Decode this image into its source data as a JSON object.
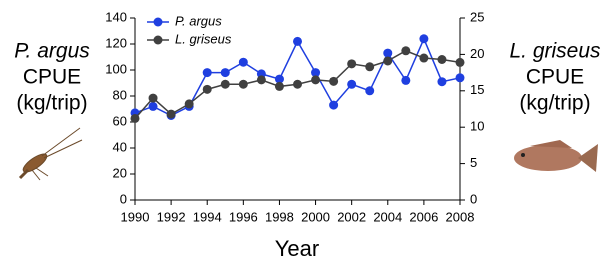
{
  "chart_data": {
    "type": "line",
    "x": [
      1990,
      1991,
      1992,
      1993,
      1994,
      1995,
      1996,
      1997,
      1998,
      1999,
      2000,
      2001,
      2002,
      2003,
      2004,
      2005,
      2006,
      2007,
      2008
    ],
    "series": [
      {
        "name": "P. argus",
        "color": "#1f3fe0",
        "axis": "y",
        "values": [
          67,
          72,
          65,
          72,
          98,
          98,
          106,
          97,
          93,
          122,
          98,
          73,
          89,
          84,
          113,
          92,
          124,
          91,
          94
        ]
      },
      {
        "name": "L. griseus",
        "color": "#404040",
        "axis": "y2",
        "values": [
          11.2,
          14,
          11.8,
          13.2,
          15.2,
          15.9,
          15.9,
          16.5,
          15.6,
          15.9,
          16.5,
          16.3,
          18.7,
          18.3,
          19.1,
          20.5,
          19.5,
          19.3,
          18.9
        ]
      }
    ],
    "xlim": [
      1990,
      2008
    ],
    "xticks": [
      1990,
      1992,
      1994,
      1996,
      1998,
      2000,
      2002,
      2004,
      2006,
      2008
    ],
    "ylim": [
      0,
      140
    ],
    "yticks": [
      0,
      20,
      40,
      60,
      80,
      100,
      120,
      140
    ],
    "y2lim": [
      0,
      25
    ],
    "y2ticks": [
      0,
      5,
      10,
      15,
      20,
      25
    ],
    "xlabel": "Year",
    "ylabel": {
      "species": "P. argus",
      "lines": [
        "CPUE",
        "(kg/trip)"
      ]
    },
    "y2label": {
      "species": "L. griseus",
      "lines": [
        "CPUE",
        "(kg/trip)"
      ]
    },
    "legend": "upper left"
  }
}
